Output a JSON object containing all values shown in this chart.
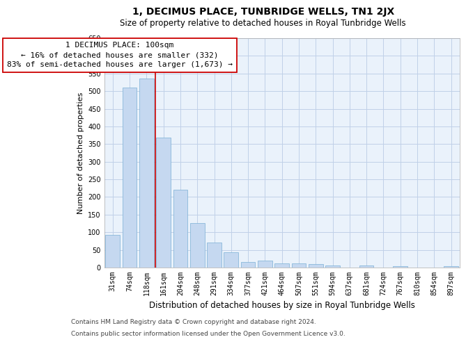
{
  "title": "1, DECIMUS PLACE, TUNBRIDGE WELLS, TN1 2JX",
  "subtitle": "Size of property relative to detached houses in Royal Tunbridge Wells",
  "xlabel": "Distribution of detached houses by size in Royal Tunbridge Wells",
  "ylabel": "Number of detached properties",
  "bar_labels": [
    "31sqm",
    "74sqm",
    "118sqm",
    "161sqm",
    "204sqm",
    "248sqm",
    "291sqm",
    "334sqm",
    "377sqm",
    "421sqm",
    "464sqm",
    "507sqm",
    "551sqm",
    "594sqm",
    "637sqm",
    "681sqm",
    "724sqm",
    "767sqm",
    "810sqm",
    "854sqm",
    "897sqm"
  ],
  "bar_values": [
    93,
    510,
    535,
    368,
    220,
    126,
    70,
    43,
    15,
    19,
    11,
    11,
    9,
    5,
    0,
    5,
    0,
    4,
    0,
    0,
    4
  ],
  "bar_color": "#c5d8f0",
  "bar_edge_color": "#7bafd4",
  "vline_x": 2.5,
  "vline_color": "#cc0000",
  "annotation_text": "1 DECIMUS PLACE: 100sqm\n← 16% of detached houses are smaller (332)\n83% of semi-detached houses are larger (1,673) →",
  "annotation_box_facecolor": "#ffffff",
  "annotation_box_edgecolor": "#cc0000",
  "ylim_min": 0,
  "ylim_max": 650,
  "yticks": [
    0,
    50,
    100,
    150,
    200,
    250,
    300,
    350,
    400,
    450,
    500,
    550,
    600,
    650
  ],
  "footer_line1": "Contains HM Land Registry data © Crown copyright and database right 2024.",
  "footer_line2": "Contains public sector information licensed under the Open Government Licence v3.0.",
  "plot_bg_color": "#eaf2fb",
  "grid_color": "#c0d0e8",
  "title_fontsize": 10,
  "subtitle_fontsize": 8.5,
  "ylabel_fontsize": 8,
  "xlabel_fontsize": 8.5,
  "tick_fontsize": 7,
  "annotation_fontsize": 8,
  "footer_fontsize": 6.5
}
